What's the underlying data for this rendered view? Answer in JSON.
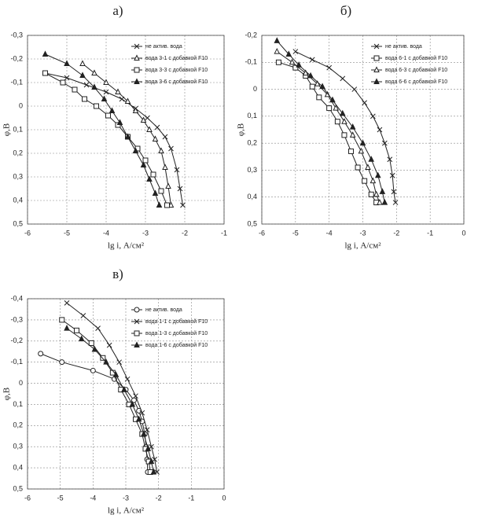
{
  "chart_data": [
    {
      "type": "line",
      "title": "а)",
      "xlabel": "lg i, А/см²",
      "ylabel": "φ,В",
      "y_inverted": true,
      "grid": true,
      "legend": "upper right",
      "xlim": [
        -6,
        -1
      ],
      "xticks": [
        -6,
        -5,
        -4,
        -3,
        -2,
        -1
      ],
      "ylim": [
        -0.3,
        0.5
      ],
      "yticks": [
        {
          "value": -0.3,
          "label": "-0,3"
        },
        {
          "value": -0.2,
          "label": "-0,2"
        },
        {
          "value": -0.1,
          "label": "-0,1"
        },
        0,
        {
          "value": 0.1,
          "label": "0,1"
        },
        {
          "value": 0.2,
          "label": "0,2"
        },
        {
          "value": 0.3,
          "label": "0,3"
        },
        {
          "value": 0.4,
          "label": "0,4"
        },
        {
          "value": 0.5,
          "label": "0,5"
        }
      ],
      "series": [
        {
          "name": "не актив. вода",
          "color": "#222",
          "marker": "x",
          "x": [
            -5.55,
            -5.0,
            -4.5,
            -4.0,
            -3.6,
            -3.25,
            -2.95,
            -2.7,
            -2.5,
            -2.35,
            -2.2,
            -2.12,
            -2.05
          ],
          "values": [
            -0.14,
            -0.12,
            -0.09,
            -0.06,
            -0.03,
            0.01,
            0.05,
            0.09,
            0.13,
            0.18,
            0.27,
            0.35,
            0.42
          ]
        },
        {
          "name": "вода 3-1 с добавкой F10",
          "color": "#222",
          "marker": "triangle",
          "x": [
            -4.6,
            -4.3,
            -4.0,
            -3.7,
            -3.45,
            -3.25,
            -3.05,
            -2.9,
            -2.75,
            -2.6,
            -2.5,
            -2.42,
            -2.35
          ],
          "values": [
            -0.18,
            -0.14,
            -0.1,
            -0.06,
            -0.02,
            0.02,
            0.06,
            0.1,
            0.14,
            0.19,
            0.26,
            0.34,
            0.42
          ]
        },
        {
          "name": "вода 3-3 с добавкой F10",
          "color": "#222",
          "marker": "square",
          "x": [
            -5.55,
            -5.1,
            -4.8,
            -4.55,
            -4.25,
            -3.95,
            -3.7,
            -3.45,
            -3.2,
            -3.0,
            -2.8,
            -2.6,
            -2.45
          ],
          "values": [
            -0.14,
            -0.1,
            -0.07,
            -0.03,
            0.0,
            0.04,
            0.08,
            0.13,
            0.18,
            0.23,
            0.29,
            0.36,
            0.42
          ]
        },
        {
          "name": "вода 3-6 с добавкой F10",
          "color": "#222",
          "marker": "triangle-filled",
          "x": [
            -5.55,
            -5.0,
            -4.6,
            -4.3,
            -4.05,
            -3.85,
            -3.65,
            -3.45,
            -3.25,
            -3.05,
            -2.9,
            -2.75,
            -2.65
          ],
          "values": [
            -0.22,
            -0.18,
            -0.13,
            -0.08,
            -0.03,
            0.02,
            0.07,
            0.13,
            0.19,
            0.25,
            0.31,
            0.37,
            0.42
          ]
        }
      ]
    },
    {
      "type": "line",
      "title": "б)",
      "xlabel": "lg i, А/см²",
      "ylabel": "φ,В",
      "y_inverted": true,
      "grid": true,
      "legend": "upper right",
      "xlim": [
        -6,
        0
      ],
      "xticks": [
        -6,
        -5,
        -4,
        -3,
        -2,
        -1,
        0
      ],
      "ylim": [
        -0.2,
        0.5
      ],
      "yticks": [
        {
          "value": -0.2,
          "label": "-0,2"
        },
        {
          "value": -0.1,
          "label": "-0,1"
        },
        0,
        {
          "value": 0.1,
          "label": "0,1"
        },
        {
          "value": 0.2,
          "label": "0,2"
        },
        {
          "value": 0.3,
          "label": "0,3"
        },
        {
          "value": 0.4,
          "label": "0,4"
        },
        {
          "value": 0.5,
          "label": "0,5"
        }
      ],
      "series": [
        {
          "name": "не актив. вода",
          "color": "#222",
          "marker": "x",
          "x": [
            -5.0,
            -4.5,
            -4.0,
            -3.6,
            -3.25,
            -2.95,
            -2.7,
            -2.5,
            -2.35,
            -2.2,
            -2.12,
            -2.08,
            -2.03
          ],
          "values": [
            -0.14,
            -0.11,
            -0.08,
            -0.04,
            0.0,
            0.05,
            0.1,
            0.15,
            0.2,
            0.26,
            0.32,
            0.38,
            0.42
          ]
        },
        {
          "name": "вода 6-1 с добавкой F10",
          "color": "#222",
          "marker": "square",
          "x": [
            -5.5,
            -5.0,
            -4.7,
            -4.5,
            -4.3,
            -4.0,
            -3.75,
            -3.55,
            -3.35,
            -3.15,
            -2.95,
            -2.75,
            -2.6
          ],
          "values": [
            -0.1,
            -0.08,
            -0.05,
            -0.01,
            0.03,
            0.07,
            0.12,
            0.17,
            0.23,
            0.29,
            0.34,
            0.39,
            0.42
          ]
        },
        {
          "name": "вода 6-3 с добавкой F10",
          "color": "#222",
          "marker": "triangle",
          "x": [
            -5.55,
            -5.1,
            -4.7,
            -4.35,
            -4.05,
            -3.8,
            -3.55,
            -3.3,
            -3.05,
            -2.85,
            -2.7,
            -2.6,
            -2.5
          ],
          "values": [
            -0.14,
            -0.1,
            -0.06,
            -0.02,
            0.02,
            0.07,
            0.12,
            0.17,
            0.23,
            0.29,
            0.34,
            0.39,
            0.42
          ]
        },
        {
          "name": "вода 6-6 с добавкой F10",
          "color": "#222",
          "marker": "triangle-filled",
          "x": [
            -5.55,
            -5.2,
            -4.9,
            -4.55,
            -4.2,
            -3.9,
            -3.6,
            -3.3,
            -3.0,
            -2.75,
            -2.55,
            -2.42,
            -2.35
          ],
          "values": [
            -0.18,
            -0.13,
            -0.09,
            -0.05,
            -0.01,
            0.04,
            0.09,
            0.14,
            0.2,
            0.26,
            0.32,
            0.38,
            0.42
          ]
        }
      ]
    },
    {
      "type": "line",
      "title": "в)",
      "xlabel": "lg i, А/см²",
      "ylabel": "φ,В",
      "y_inverted": true,
      "grid": true,
      "legend": "upper right",
      "xlim": [
        -6,
        0
      ],
      "xticks": [
        -6,
        -5,
        -4,
        -3,
        -2,
        -1,
        0
      ],
      "ylim": [
        -0.4,
        0.5
      ],
      "yticks": [
        {
          "value": -0.4,
          "label": "-0,4"
        },
        {
          "value": -0.3,
          "label": "-0,3"
        },
        {
          "value": -0.2,
          "label": "-0,2"
        },
        {
          "value": -0.1,
          "label": "-0,1"
        },
        0,
        {
          "value": 0.1,
          "label": "0,1"
        },
        {
          "value": 0.2,
          "label": "0,2"
        },
        {
          "value": 0.3,
          "label": "0,3"
        },
        {
          "value": 0.4,
          "label": "0,4"
        },
        {
          "value": 0.5,
          "label": "0,5"
        }
      ],
      "series": [
        {
          "name": "не актив. вода",
          "color": "#222",
          "marker": "circle",
          "x": [
            -5.6,
            -4.95,
            -4.0,
            -3.35,
            -3.0,
            -2.75,
            -2.6,
            -2.5,
            -2.42,
            -2.38,
            -2.35,
            -2.33
          ],
          "values": [
            -0.14,
            -0.1,
            -0.06,
            -0.02,
            0.03,
            0.08,
            0.13,
            0.18,
            0.24,
            0.3,
            0.36,
            0.42
          ]
        },
        {
          "name": "вода 1-1 с добавкой F10",
          "color": "#222",
          "marker": "x",
          "x": [
            -4.8,
            -4.3,
            -3.85,
            -3.5,
            -3.2,
            -2.95,
            -2.7,
            -2.5,
            -2.35,
            -2.22,
            -2.12,
            -2.05
          ],
          "values": [
            -0.38,
            -0.32,
            -0.26,
            -0.18,
            -0.1,
            -0.02,
            0.06,
            0.14,
            0.22,
            0.3,
            0.36,
            0.42
          ]
        },
        {
          "name": "вода 1-3 с добавкой F10",
          "color": "#222",
          "marker": "square",
          "x": [
            -4.95,
            -4.5,
            -4.05,
            -3.7,
            -3.4,
            -3.15,
            -2.9,
            -2.7,
            -2.5,
            -2.4,
            -2.3,
            -2.25
          ],
          "values": [
            -0.3,
            -0.25,
            -0.19,
            -0.12,
            -0.05,
            0.03,
            0.1,
            0.17,
            0.24,
            0.31,
            0.37,
            0.42
          ]
        },
        {
          "name": "вода 1-6 с добавкой F10",
          "color": "#222",
          "marker": "triangle-filled",
          "x": [
            -4.8,
            -4.35,
            -3.95,
            -3.6,
            -3.3,
            -3.05,
            -2.8,
            -2.6,
            -2.45,
            -2.32,
            -2.22,
            -2.15
          ],
          "values": [
            -0.26,
            -0.21,
            -0.16,
            -0.1,
            -0.04,
            0.03,
            0.1,
            0.17,
            0.24,
            0.31,
            0.37,
            0.42
          ]
        }
      ]
    }
  ]
}
